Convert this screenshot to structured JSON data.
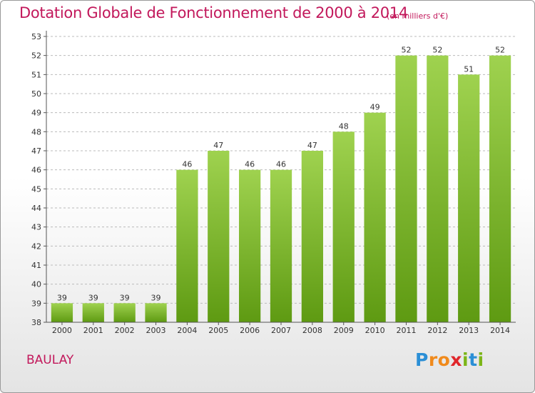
{
  "title": "Dotation Globale de Fonctionnement de 2000 à 2014",
  "subtitle": "(en milliers d'€)",
  "place": "BAULAY",
  "logo": {
    "letters": [
      "P",
      "r",
      "o",
      "x",
      "i",
      "t",
      "i"
    ],
    "colors": [
      "#2b8fd6",
      "#f08a1c",
      "#f08a1c",
      "#e0262b",
      "#7cb518",
      "#2b8fd6",
      "#7cb518"
    ]
  },
  "colors": {
    "title": "#c2185b",
    "bar_top": "#9fd24f",
    "bar_bottom": "#5e9a12",
    "grid": "#bbbbbb"
  },
  "chart_data": {
    "type": "bar",
    "title": "Dotation Globale de Fonctionnement de 2000 à 2014",
    "subtitle": "(en milliers d'€)",
    "categories": [
      "2000",
      "2001",
      "2002",
      "2003",
      "2004",
      "2005",
      "2006",
      "2007",
      "2008",
      "2009",
      "2010",
      "2011",
      "2012",
      "2013",
      "2014"
    ],
    "values": [
      39,
      39,
      39,
      39,
      46,
      47,
      46,
      46,
      47,
      48,
      49,
      52,
      52,
      51,
      52
    ],
    "ylim": [
      38,
      53
    ],
    "yticks": [
      38,
      39,
      40,
      41,
      42,
      43,
      44,
      45,
      46,
      47,
      48,
      49,
      50,
      51,
      52,
      53
    ],
    "grid": "horizontal dashed",
    "data_labels": true
  }
}
